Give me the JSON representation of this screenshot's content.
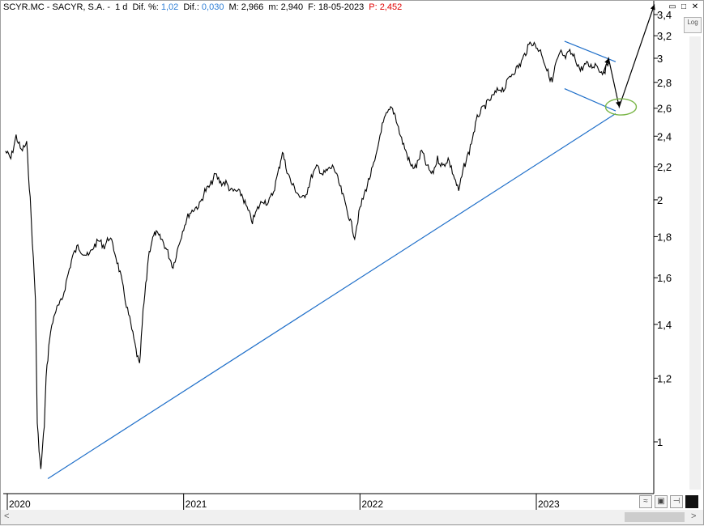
{
  "title_bar": {
    "symbol": "SCYR.MC - SACYR, S.A. -",
    "timeframe": "1 d",
    "dif_pct_label": "Dif. %:",
    "dif_pct_value": "1,02",
    "dif_label": "Dif.:",
    "dif_value": "0,030",
    "max_label": "M:",
    "max_value": "2,966",
    "min_label": "m:",
    "min_value": "2,940",
    "date_label": "F:",
    "date_value": "18-05-2023",
    "price_label": "P:",
    "price_value": "2,452"
  },
  "controls": {
    "log_label": "Log",
    "window_buttons": [
      "▭",
      "□",
      "✕"
    ]
  },
  "colors": {
    "price": "#000000",
    "trendline": "#1f6fc9",
    "target_ellipse": "#7ab648",
    "dif_values": "#2f7fd6",
    "price_value": "#e00000"
  },
  "chart_data": {
    "type": "line",
    "scale": "log",
    "ylim": [
      0.9,
      3.4
    ],
    "y_ticks": [
      "3,4",
      "3,2",
      "3",
      "2,8",
      "2,6",
      "2,4",
      "2,2",
      "2",
      "1,8",
      "1,6",
      "1,4",
      "1,2",
      "1"
    ],
    "y_tick_values": [
      3.4,
      3.2,
      3.0,
      2.8,
      2.6,
      2.4,
      2.2,
      2.0,
      1.8,
      1.6,
      1.4,
      1.2,
      1.0
    ],
    "x_ticks": [
      "2020",
      "2021",
      "2022",
      "2023"
    ],
    "x_tick_values": [
      2020.0,
      2021.0,
      2022.0,
      2023.0
    ],
    "xlim": [
      2019.99,
      2023.67
    ],
    "series": [
      {
        "x": [
          2019.99,
          2020.02,
          2020.05,
          2020.08,
          2020.11,
          2020.13,
          2020.16,
          2020.17,
          2020.19,
          2020.21,
          2020.22,
          2020.24,
          2020.27,
          2020.31,
          2020.34,
          2020.37,
          2020.4,
          2020.43,
          2020.46,
          2020.49,
          2020.52,
          2020.55,
          2020.58,
          2020.61,
          2020.64,
          2020.67,
          2020.7,
          2020.73,
          2020.75,
          2020.77,
          2020.79,
          2020.8,
          2020.82,
          2020.84,
          2020.86,
          2020.88,
          2020.91,
          2020.94,
          2020.97,
          2021.0,
          2021.03,
          2021.06,
          2021.09,
          2021.12,
          2021.15,
          2021.18,
          2021.21,
          2021.24,
          2021.27,
          2021.3,
          2021.33,
          2021.36,
          2021.39,
          2021.42,
          2021.45,
          2021.48,
          2021.51,
          2021.54,
          2021.56,
          2021.58,
          2021.61,
          2021.64,
          2021.67,
          2021.7,
          2021.73,
          2021.76,
          2021.79,
          2021.82,
          2021.85,
          2021.88,
          2021.91,
          2021.94,
          2021.97,
          2022.0,
          2022.03,
          2022.06,
          2022.09,
          2022.12,
          2022.15,
          2022.18,
          2022.2,
          2022.23,
          2022.26,
          2022.29,
          2022.32,
          2022.35,
          2022.38,
          2022.41,
          2022.44,
          2022.47,
          2022.5,
          2022.53,
          2022.56,
          2022.59,
          2022.62,
          2022.65,
          2022.67,
          2022.7,
          2022.73,
          2022.76,
          2022.79,
          2022.82,
          2022.85,
          2022.88,
          2022.91,
          2022.94,
          2022.97,
          2023.0,
          2023.03,
          2023.06,
          2023.09,
          2023.11,
          2023.14,
          2023.16,
          2023.19,
          2023.22,
          2023.25,
          2023.28,
          2023.31,
          2023.34,
          2023.37,
          2023.39,
          2023.41
        ],
        "y": [
          2.3,
          2.25,
          2.4,
          2.3,
          2.35,
          2.0,
          1.5,
          1.05,
          0.92,
          1.05,
          1.2,
          1.35,
          1.45,
          1.5,
          1.6,
          1.7,
          1.75,
          1.72,
          1.7,
          1.75,
          1.78,
          1.75,
          1.8,
          1.72,
          1.62,
          1.5,
          1.4,
          1.3,
          1.24,
          1.45,
          1.6,
          1.7,
          1.78,
          1.82,
          1.8,
          1.78,
          1.72,
          1.65,
          1.75,
          1.85,
          1.92,
          1.95,
          1.97,
          2.05,
          2.08,
          2.15,
          2.1,
          2.1,
          2.05,
          2.05,
          2.03,
          1.95,
          1.88,
          1.95,
          2.0,
          1.98,
          2.05,
          2.18,
          2.3,
          2.2,
          2.1,
          2.05,
          2.0,
          2.05,
          2.15,
          2.2,
          2.15,
          2.18,
          2.2,
          2.1,
          2.0,
          1.9,
          1.8,
          1.95,
          2.05,
          2.15,
          2.25,
          2.45,
          2.55,
          2.6,
          2.55,
          2.4,
          2.3,
          2.2,
          2.2,
          2.3,
          2.2,
          2.15,
          2.25,
          2.2,
          2.25,
          2.15,
          2.05,
          2.2,
          2.3,
          2.45,
          2.55,
          2.6,
          2.65,
          2.7,
          2.75,
          2.75,
          2.85,
          2.9,
          2.95,
          3.05,
          3.15,
          3.1,
          3.05,
          2.9,
          2.8,
          2.95,
          3.05,
          3.0,
          3.05,
          3.0,
          2.9,
          2.95,
          2.93,
          2.95,
          2.88,
          2.9,
          2.96
        ]
      }
    ],
    "annotations": [
      {
        "type": "trendline",
        "from": [
          2020.23,
          0.9
        ],
        "to": [
          2023.45,
          2.56
        ]
      },
      {
        "type": "trendline",
        "from": [
          2023.16,
          3.15
        ],
        "to": [
          2023.45,
          2.97
        ]
      },
      {
        "type": "trendline",
        "from": [
          2023.16,
          2.75
        ],
        "to": [
          2023.45,
          2.58
        ]
      },
      {
        "type": "arrow",
        "points": [
          [
            2023.38,
            2.88
          ],
          [
            2023.41,
            3.0
          ],
          [
            2023.47,
            2.61
          ],
          [
            2023.67,
            3.5
          ]
        ]
      },
      {
        "type": "ellipse",
        "center": [
          2023.48,
          2.61
        ]
      }
    ]
  }
}
